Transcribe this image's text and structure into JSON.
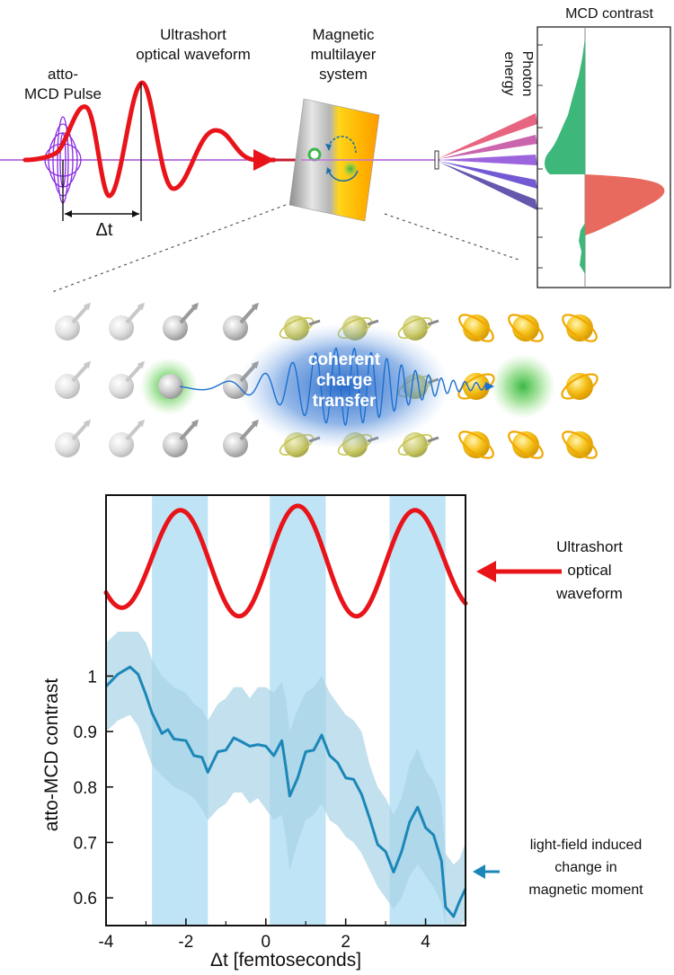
{
  "top": {
    "pulse_label_line1": "atto-",
    "pulse_label_line2": "MCD Pulse",
    "waveform_label_line1": "Ultrashort",
    "waveform_label_line2": "optical waveform",
    "system_label_line1": "Magnetic",
    "system_label_line2": "multilayer",
    "system_label_line3": "system",
    "delay_label": "Δt",
    "spectrum_title": "MCD contrast",
    "spectrum_axis_line1": "Photon",
    "spectrum_axis_line2": "energy"
  },
  "middle": {
    "transfer_line1": "coherent",
    "transfer_line2": "charge",
    "transfer_line3": "transfer"
  },
  "bottom": {
    "waveform_annot_line1": "Ultrashort",
    "waveform_annot_line2": "optical",
    "waveform_annot_line3": "waveform",
    "moment_annot_line1": "light-field induced",
    "moment_annot_line2": "change in",
    "moment_annot_line3": "magnetic moment"
  },
  "colors": {
    "waveform": "#e8141a",
    "mcd_trace": "#1b87b8",
    "mcd_band": "#a8d3e6",
    "shade": "#bfe4f5",
    "spectrum_pos": "#e86a5e",
    "spectrum_neg": "#3db87a",
    "pulse": "#8a2be2"
  },
  "chart_data": {
    "type": "line",
    "xlabel": "Δt [femtoseconds]",
    "ylabel": "atto-MCD contrast",
    "xlim": [
      -4,
      5
    ],
    "ylim": [
      0.55,
      1.08
    ],
    "xticks": [
      -4,
      -2,
      0,
      2,
      4
    ],
    "xticklabels": [
      "-4",
      "-2",
      "0",
      "2",
      "4"
    ],
    "yticks": [
      0.6,
      0.7,
      0.8,
      0.9,
      1.0
    ],
    "yticklabels": [
      "0.6",
      "0.7",
      "0.8",
      "0.9",
      "1"
    ],
    "shaded_regions": [
      [
        -2.85,
        -1.45
      ],
      [
        0.1,
        1.5
      ],
      [
        3.1,
        4.5
      ]
    ],
    "series": [
      {
        "x": [
          -4.0,
          -3.7,
          -3.4,
          -3.2,
          -3.0,
          -2.85,
          -2.6,
          -2.45,
          -2.3,
          -2.0,
          -1.8,
          -1.6,
          -1.45,
          -1.2,
          -1.0,
          -0.8,
          -0.6,
          -0.4,
          -0.2,
          0.0,
          0.2,
          0.4,
          0.5,
          0.6,
          0.8,
          1.0,
          1.2,
          1.4,
          1.6,
          1.8,
          2.0,
          2.2,
          2.4,
          2.6,
          2.8,
          3.0,
          3.2,
          3.4,
          3.6,
          3.8,
          4.0,
          4.2,
          4.4,
          4.5,
          4.7,
          4.85,
          5.0
        ],
        "y": [
          0.985,
          1.0,
          1.02,
          1.0,
          0.97,
          0.93,
          0.9,
          0.9,
          0.89,
          0.88,
          0.86,
          0.85,
          0.83,
          0.86,
          0.87,
          0.885,
          0.885,
          0.87,
          0.88,
          0.87,
          0.86,
          0.88,
          0.84,
          0.78,
          0.82,
          0.86,
          0.87,
          0.89,
          0.86,
          0.84,
          0.82,
          0.81,
          0.79,
          0.74,
          0.7,
          0.68,
          0.65,
          0.68,
          0.74,
          0.76,
          0.73,
          0.71,
          0.67,
          0.58,
          0.57,
          0.59,
          0.62
        ],
        "band_lower": [
          0.9,
          0.92,
          0.93,
          0.91,
          0.87,
          0.84,
          0.82,
          0.81,
          0.8,
          0.79,
          0.78,
          0.76,
          0.74,
          0.76,
          0.77,
          0.79,
          0.79,
          0.77,
          0.78,
          0.76,
          0.74,
          0.75,
          0.71,
          0.65,
          0.7,
          0.74,
          0.75,
          0.77,
          0.74,
          0.73,
          0.71,
          0.7,
          0.68,
          0.65,
          0.62,
          0.6,
          0.58,
          0.6,
          0.64,
          0.66,
          0.64,
          0.62,
          0.59,
          0.55,
          0.55,
          0.55,
          0.56
        ],
        "band_upper": [
          1.06,
          1.08,
          1.08,
          1.08,
          1.06,
          1.03,
          1.0,
          0.99,
          0.98,
          0.97,
          0.95,
          0.94,
          0.92,
          0.95,
          0.96,
          0.98,
          0.98,
          0.96,
          0.98,
          0.98,
          0.97,
          0.99,
          0.96,
          0.9,
          0.94,
          0.97,
          0.98,
          1.0,
          0.97,
          0.95,
          0.93,
          0.92,
          0.9,
          0.84,
          0.8,
          0.78,
          0.75,
          0.78,
          0.84,
          0.87,
          0.83,
          0.81,
          0.77,
          0.68,
          0.66,
          0.67,
          0.7
        ]
      }
    ]
  }
}
